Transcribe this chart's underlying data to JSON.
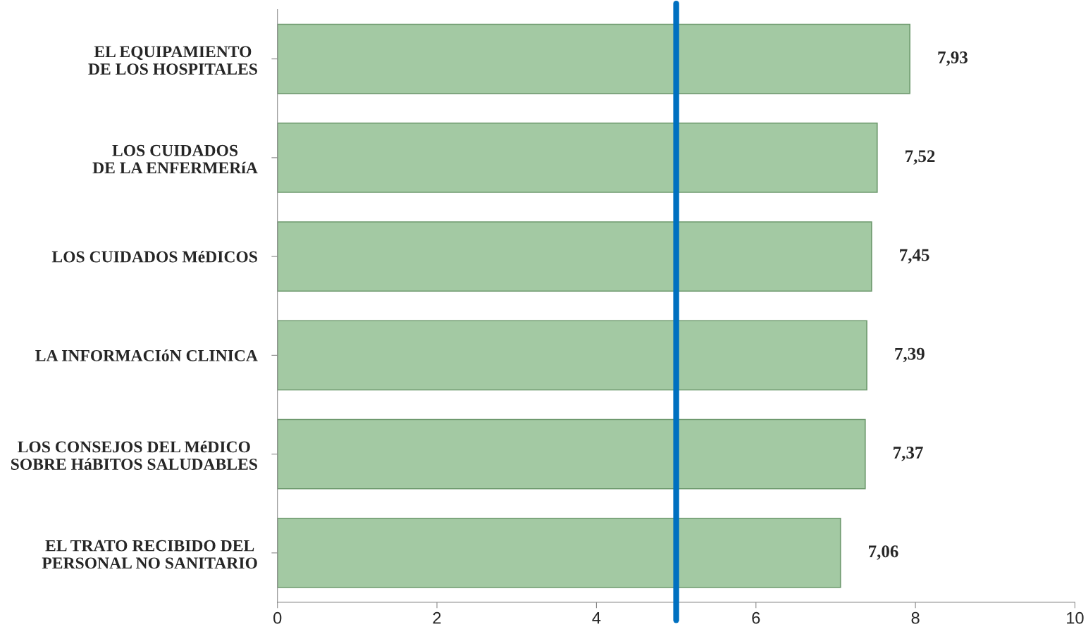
{
  "chart_data": {
    "type": "bar",
    "orientation": "horizontal",
    "categories": [
      "EL EQUIPAMIENTO\nDE LOS HOSPITALES",
      "LOS CUIDADOS\nDE LA ENFERMERíA",
      "LOS CUIDADOS MéDICOS",
      "LA INFORMACIóN CLINICA",
      "LOS CONSEJOS DEL MéDICO\nSOBRE HáBITOS SALUDABLES",
      "EL TRATO RECIBIDO DEL\nPERSONAL NO SANITARIO"
    ],
    "values": [
      7.93,
      7.52,
      7.45,
      7.39,
      7.37,
      7.06
    ],
    "value_labels": [
      "7,93",
      "7,52",
      "7,45",
      "7,39",
      "7,37",
      "7,06"
    ],
    "color": "#a3c9a3",
    "xlim": [
      0,
      10
    ],
    "xticks": [
      0,
      2,
      4,
      6,
      8,
      10
    ],
    "ref_lines": [
      {
        "axis": "x",
        "value": 5,
        "color": "#0070c0"
      }
    ],
    "grid": false,
    "legend": false
  }
}
